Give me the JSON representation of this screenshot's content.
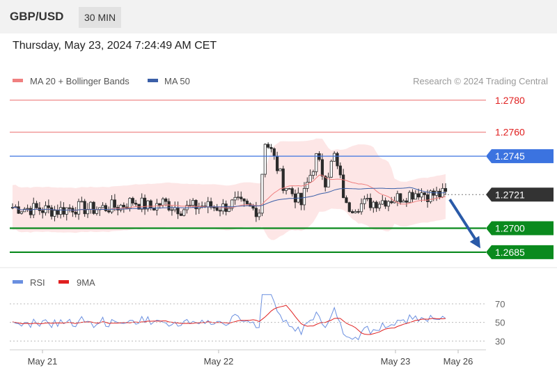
{
  "header": {
    "pair": "GBP/USD",
    "timeframe": "30 MIN"
  },
  "timestamp": "Thursday, May 23, 2024 7:24:49 AM CET",
  "legend": {
    "ma20": "MA 20 + Bollinger Bands",
    "ma50": "MA 50",
    "credit": "Research © 2024 Trading Central",
    "rsi": "RSI",
    "rsi_ma": "9MA"
  },
  "colors": {
    "ma20": "#f08080",
    "ma50": "#3b5fa8",
    "bollinger_fill": "#fde3e3",
    "candle": "#2b2b2b",
    "resistance": "#e63b3b",
    "pivot": "#3b73e0",
    "support": "#0a8a1e",
    "current": "#333333",
    "arrow": "#2a5aa8",
    "rsi": "#6a8fe0",
    "rsi_ma": "#e02020"
  },
  "chart_data": {
    "type": "line",
    "series": [
      {
        "name": "MA 20 + Bollinger Bands",
        "role": "ma20"
      },
      {
        "name": "MA 50",
        "role": "ma50"
      }
    ],
    "levels": [
      {
        "value": 1.278,
        "label": "1.2780",
        "kind": "resistance"
      },
      {
        "value": 1.276,
        "label": "1.2760",
        "kind": "resistance"
      },
      {
        "value": 1.2745,
        "label": "1.2745",
        "kind": "pivot"
      },
      {
        "value": 1.2721,
        "label": "1.2721",
        "kind": "current"
      },
      {
        "value": 1.27,
        "label": "1.2700",
        "kind": "support"
      },
      {
        "value": 1.2685,
        "label": "1.2685",
        "kind": "support"
      }
    ],
    "forecast_arrow": {
      "from": 1.2718,
      "to": 1.2687
    },
    "x_ticks": [
      "May 21",
      "May 22",
      "May 23",
      "May 26"
    ],
    "price_ylim": [
      1.2678,
      1.2786
    ],
    "rsi": {
      "series": [
        {
          "name": "RSI",
          "role": "rsi"
        },
        {
          "name": "9MA",
          "role": "rsi_ma"
        }
      ],
      "ylim": [
        22,
        82
      ],
      "ticks": [
        "70",
        "50",
        "30"
      ],
      "tick_values": [
        70,
        50,
        30
      ]
    }
  }
}
